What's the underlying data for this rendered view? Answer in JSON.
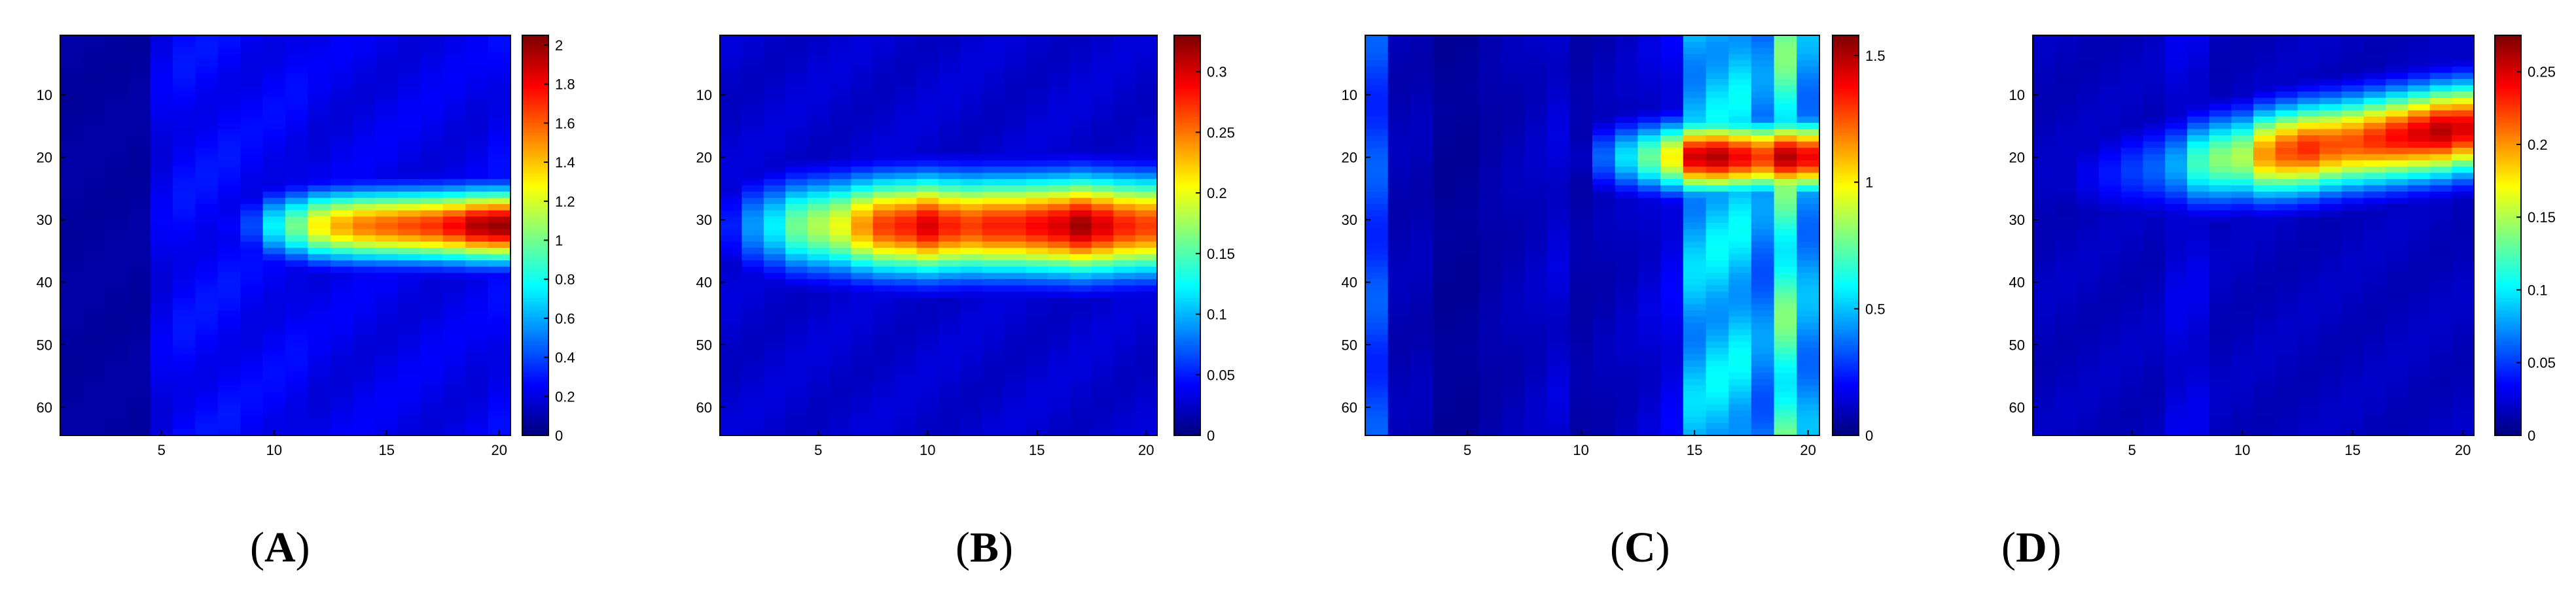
{
  "figure": {
    "panels": [
      {
        "label": "A",
        "chart_data": {
          "type": "heatmap",
          "x": {
            "range": [
              0.5,
              20.5
            ],
            "ticks": [
              5,
              10,
              15,
              20
            ]
          },
          "y": {
            "range": [
              0.5,
              64.5
            ],
            "reversed": true,
            "ticks": [
              10,
              20,
              30,
              40,
              50,
              60
            ]
          },
          "colormap": "jet",
          "colorbar": {
            "min": 0,
            "max": 2.05,
            "ticks": [
              0,
              0.2,
              0.4,
              0.6,
              0.8,
              1,
              1.2,
              1.4,
              1.6,
              1.8,
              2
            ],
            "tick_labels": [
              "0",
              "0.2",
              "0.4",
              "0.6",
              "0.8",
              "1",
              "1.2",
              "1.4",
              "1.6",
              "1.8",
              "2"
            ]
          },
          "bands": [
            {
              "center": 31,
              "width": 5.5,
              "peaks": [
                0.0,
                0.02,
                0.03,
                0.03,
                0.15,
                0.18,
                0.2,
                0.25,
                0.4,
                0.75,
                1.0,
                1.3,
                1.45,
                1.55,
                1.6,
                1.65,
                1.7,
                1.8,
                1.95,
                2.0
              ]
            }
          ],
          "background": [
            0.08,
            0.08,
            0.08,
            0.08,
            0.25,
            0.3,
            0.3,
            0.3,
            0.28,
            0.28,
            0.28,
            0.25,
            0.25,
            0.25,
            0.25,
            0.25,
            0.25,
            0.25,
            0.25,
            0.28
          ]
        }
      },
      {
        "label": "B",
        "chart_data": {
          "type": "heatmap",
          "x": {
            "range": [
              0.5,
              20.5
            ],
            "ticks": [
              5,
              10,
              15,
              20
            ]
          },
          "y": {
            "range": [
              0.5,
              64.5
            ],
            "reversed": true,
            "ticks": [
              10,
              20,
              30,
              40,
              50,
              60
            ]
          },
          "colormap": "jet",
          "colorbar": {
            "min": 0,
            "max": 0.33,
            "ticks": [
              0,
              0.05,
              0.1,
              0.15,
              0.2,
              0.25,
              0.3
            ],
            "tick_labels": [
              "0",
              "0.05",
              "0.1",
              "0.15",
              "0.2",
              "0.25",
              "0.3"
            ]
          },
          "bands": [
            {
              "center": 31,
              "width": 7.5,
              "peaks": [
                0.05,
                0.09,
                0.12,
                0.16,
                0.18,
                0.2,
                0.24,
                0.27,
                0.28,
                0.3,
                0.28,
                0.27,
                0.28,
                0.28,
                0.29,
                0.3,
                0.32,
                0.3,
                0.28,
                0.27
              ]
            }
          ],
          "background": [
            0.03,
            0.03,
            0.03,
            0.03,
            0.03,
            0.03,
            0.03,
            0.03,
            0.03,
            0.03,
            0.03,
            0.03,
            0.03,
            0.03,
            0.03,
            0.03,
            0.03,
            0.03,
            0.03,
            0.03
          ]
        }
      },
      {
        "label": "C",
        "chart_data": {
          "type": "heatmap",
          "x": {
            "range": [
              0.5,
              20.5
            ],
            "ticks": [
              5,
              10,
              15,
              20
            ]
          },
          "y": {
            "range": [
              0.5,
              64.5
            ],
            "reversed": true,
            "ticks": [
              10,
              20,
              30,
              40,
              50,
              60
            ]
          },
          "colormap": "jet",
          "colorbar": {
            "min": 0,
            "max": 1.58,
            "ticks": [
              0,
              0.5,
              1,
              1.5
            ],
            "tick_labels": [
              "0",
              "0.5",
              "1",
              "1.5"
            ]
          },
          "bands": [
            {
              "center": 20,
              "width": 5.5,
              "peaks": [
                0.0,
                0.0,
                0.0,
                0.0,
                0.0,
                0.0,
                0.0,
                0.0,
                0.02,
                0.1,
                0.35,
                0.55,
                0.75,
                1.0,
                1.45,
                1.5,
                1.4,
                1.3,
                1.5,
                1.4
              ]
            }
          ],
          "background": [
            0.35,
            0.1,
            0.1,
            0.05,
            0.05,
            0.08,
            0.1,
            0.12,
            0.15,
            0.08,
            0.1,
            0.12,
            0.15,
            0.2,
            0.55,
            0.6,
            0.6,
            0.45,
            0.8,
            0.5
          ]
        }
      },
      {
        "label": "D",
        "chart_data": {
          "type": "heatmap",
          "x": {
            "range": [
              0.5,
              20.5
            ],
            "ticks": [
              5,
              10,
              15,
              20
            ]
          },
          "y": {
            "range": [
              0.5,
              64.5
            ],
            "reversed": true,
            "ticks": [
              10,
              20,
              30,
              40,
              50,
              60
            ]
          },
          "colormap": "jet",
          "colorbar": {
            "min": 0,
            "max": 0.275,
            "ticks": [
              0,
              0.05,
              0.1,
              0.15,
              0.2,
              0.25
            ],
            "tick_labels": [
              "0",
              "0.05",
              "0.1",
              "0.15",
              "0.2",
              "0.25"
            ]
          },
          "bands": [
            {
              "center": 24,
              "slope": -0.45,
              "width": 7.0,
              "peaks": [
                0.01,
                0.02,
                0.03,
                0.04,
                0.05,
                0.06,
                0.08,
                0.12,
                0.14,
                0.15,
                0.2,
                0.22,
                0.23,
                0.22,
                0.22,
                0.23,
                0.24,
                0.25,
                0.26,
                0.25
              ]
            }
          ],
          "background": [
            0.02,
            0.02,
            0.02,
            0.02,
            0.02,
            0.02,
            0.03,
            0.03,
            0.02,
            0.02,
            0.02,
            0.02,
            0.02,
            0.02,
            0.02,
            0.02,
            0.02,
            0.02,
            0.02,
            0.02
          ]
        }
      }
    ]
  }
}
